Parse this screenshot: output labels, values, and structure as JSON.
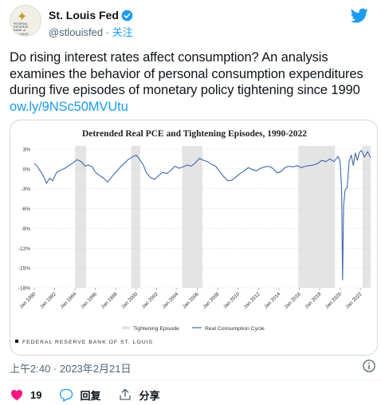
{
  "account": {
    "display_name": "St. Louis Fed",
    "handle": "@stlouisfed",
    "separator": "·",
    "follow_label": "关注",
    "avatar_text": [
      "FEDERAL",
      "RESERVE",
      "BANK of",
      "ST. LOUIS"
    ],
    "verified_color": "#1d9bf0"
  },
  "tweet": {
    "lines": [
      "Do rising interest rates affect consumption? An analysis",
      "examines the behavior of personal consumption expenditures",
      "during five episodes of monetary policy tightening since 1990"
    ],
    "link": "ow.ly/9NSc50MVUtu",
    "timestamp": "上午2:40 · 2023年2月21日"
  },
  "actions": {
    "like_count": "19",
    "reply_label": "回复",
    "share_label": "分享"
  },
  "chart_data": {
    "type": "line",
    "title": "Detrended Real PCE and Tightening Episodes, 1990-2022",
    "source": "FEDERAL RESERVE BANK OF ST. LOUIS",
    "y_ticks": [
      "3%",
      "0%",
      "-3%",
      "-6%",
      "-9%",
      "-12%",
      "-15%",
      "-18%"
    ],
    "ylim": [
      -18,
      3
    ],
    "xlim": [
      1990,
      2023
    ],
    "x_ticks": [
      "Jan 1990",
      "Jan 1992",
      "Jan 1994",
      "Jan 1996",
      "Jan 1998",
      "Jan 2000",
      "Jan 2002",
      "Jan 2004",
      "Jan 2006",
      "Jan 2008",
      "Jan 2010",
      "Jan 2012",
      "Jan 2014",
      "Jan 2016",
      "Jan 2018",
      "Jan 2020",
      "Jan 2022"
    ],
    "legend": [
      "Tightening Episode",
      "Real Consumption Cycle"
    ],
    "legend_placement": "bottom",
    "tightening_episodes": [
      [
        1994.0,
        1995.1
      ],
      [
        1999.5,
        2000.4
      ],
      [
        2004.5,
        2006.5
      ],
      [
        2015.9,
        2019.5
      ],
      [
        2022.2,
        2023.0
      ]
    ],
    "series": [
      {
        "name": "Real Consumption Cycle",
        "color": "#3f66b0",
        "x": [
          1990.0,
          1990.3,
          1990.7,
          1991.0,
          1991.2,
          1991.5,
          1991.8,
          1992.2,
          1992.6,
          1993.0,
          1993.4,
          1993.8,
          1994.2,
          1994.6,
          1995.0,
          1995.3,
          1995.7,
          1996.0,
          1996.4,
          1996.8,
          1997.2,
          1997.6,
          1998.0,
          1998.4,
          1998.8,
          1999.2,
          1999.6,
          2000.0,
          2000.3,
          2000.7,
          2001.0,
          2001.4,
          2001.8,
          2002.2,
          2002.6,
          2003.0,
          2003.4,
          2003.8,
          2004.2,
          2004.6,
          2005.0,
          2005.4,
          2005.8,
          2006.2,
          2006.6,
          2007.0,
          2007.4,
          2007.8,
          2008.2,
          2008.6,
          2009.0,
          2009.4,
          2009.8,
          2010.2,
          2010.6,
          2011.0,
          2011.4,
          2011.8,
          2012.2,
          2012.6,
          2013.0,
          2013.4,
          2013.8,
          2014.2,
          2014.6,
          2015.0,
          2015.4,
          2015.8,
          2016.2,
          2016.6,
          2017.0,
          2017.4,
          2017.8,
          2018.2,
          2018.6,
          2019.0,
          2019.4,
          2019.8,
          2020.0,
          2020.15,
          2020.25,
          2020.35,
          2020.5,
          2020.7,
          2020.9,
          2021.1,
          2021.3,
          2021.5,
          2021.7,
          2021.9,
          2022.1,
          2022.4,
          2022.7,
          2023.0
        ],
        "values": [
          0.8,
          0.4,
          -0.6,
          -1.4,
          -2.2,
          -1.4,
          -1.8,
          -0.5,
          -0.2,
          0.1,
          0.5,
          0.9,
          1.4,
          1.1,
          0.4,
          0.6,
          0.3,
          -0.5,
          -1.0,
          -1.4,
          -2.0,
          -1.2,
          -0.5,
          0.2,
          0.8,
          1.4,
          1.8,
          2.1,
          1.5,
          0.6,
          -0.6,
          -1.3,
          -1.6,
          -1.0,
          -0.5,
          -0.7,
          -0.2,
          0.4,
          0.1,
          0.3,
          0.6,
          0.4,
          0.9,
          1.6,
          1.3,
          1.1,
          0.7,
          0.4,
          -0.4,
          -1.2,
          -1.8,
          -1.7,
          -1.2,
          -0.7,
          -0.3,
          0.2,
          -0.1,
          -0.3,
          0.1,
          0.3,
          0.4,
          0.1,
          -0.6,
          -0.4,
          0.2,
          0.4,
          0.3,
          0.5,
          0.2,
          0.4,
          0.5,
          0.6,
          0.8,
          1.3,
          1.1,
          1.5,
          1.1,
          1.9,
          1.2,
          -3.0,
          -16.8,
          -5.5,
          -3.2,
          -2.8,
          1.2,
          2.1,
          0.5,
          2.4,
          1.3,
          2.5,
          2.8,
          1.8,
          2.6,
          1.7
        ]
      }
    ]
  }
}
